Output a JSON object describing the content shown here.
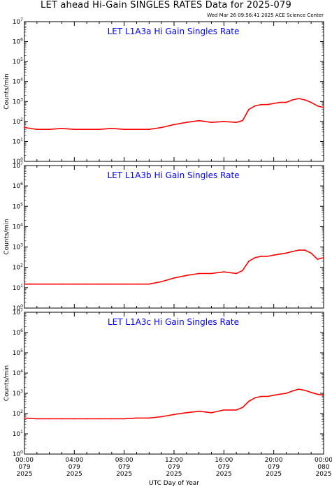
{
  "page": {
    "title": "LET ahead Hi-Gain SINGLES RATES Data for 2025-079",
    "timestamp": "Wed Mar 26 09:56:41 2025 ACE Science Center",
    "xlabel": "UTC Day of Year"
  },
  "colors": {
    "series": "#ff0000",
    "panel_title": "#0000ff",
    "axis": "#000000"
  },
  "chart_data": [
    {
      "type": "line",
      "title": "LET L1A3a Hi Gain Singles Rate",
      "ylabel": "Counts/min",
      "yscale": "log",
      "ylim": [
        1,
        10000000
      ],
      "ytick_labels": [
        "10^0",
        "10^1",
        "10^2",
        "10^3",
        "10^4",
        "10^5",
        "10^6",
        "10^7"
      ],
      "xlim": [
        0,
        24
      ],
      "x_hours": [
        0,
        1,
        2,
        3,
        4,
        5,
        6,
        7,
        8,
        9,
        10,
        11,
        12,
        13,
        14,
        15,
        16,
        17,
        17.5,
        18,
        18.5,
        19,
        19.5,
        20,
        20.5,
        21,
        21.5,
        22,
        22.5,
        23,
        23.5,
        24
      ],
      "y": [
        50,
        40,
        40,
        45,
        40,
        40,
        40,
        45,
        40,
        40,
        40,
        50,
        70,
        90,
        110,
        90,
        100,
        90,
        110,
        400,
        600,
        700,
        700,
        800,
        900,
        900,
        1200,
        1400,
        1200,
        900,
        600,
        500
      ]
    },
    {
      "type": "line",
      "title": "LET L1A3b Hi Gain Singles Rate",
      "ylabel": "Counts/min",
      "yscale": "log",
      "ylim": [
        1,
        10000000
      ],
      "ytick_labels": [
        "10^0",
        "10^1",
        "10^2",
        "10^3",
        "10^4",
        "10^5",
        "10^6",
        "10^7"
      ],
      "xlim": [
        0,
        24
      ],
      "x_hours": [
        0,
        1,
        2,
        3,
        4,
        5,
        6,
        7,
        8,
        9,
        10,
        11,
        12,
        13,
        14,
        15,
        16,
        17,
        17.5,
        18,
        18.5,
        19,
        19.5,
        20,
        20.5,
        21,
        21.5,
        22,
        22.5,
        23,
        23.5,
        24
      ],
      "y": [
        15,
        15,
        15,
        15,
        15,
        15,
        15,
        15,
        15,
        15,
        15,
        20,
        30,
        40,
        50,
        50,
        60,
        50,
        70,
        200,
        300,
        350,
        350,
        400,
        450,
        500,
        600,
        700,
        700,
        500,
        250,
        300
      ]
    },
    {
      "type": "line",
      "title": "LET L1A3c Hi Gain Singles Rate",
      "ylabel": "Counts/min",
      "yscale": "log",
      "ylim": [
        1,
        10000000
      ],
      "ytick_labels": [
        "10^0",
        "10^1",
        "10^2",
        "10^3",
        "10^4",
        "10^5",
        "10^6",
        "10^7"
      ],
      "xlim": [
        0,
        24
      ],
      "x_hours": [
        0,
        1,
        2,
        3,
        4,
        5,
        6,
        7,
        8,
        9,
        10,
        11,
        12,
        13,
        14,
        15,
        16,
        17,
        17.5,
        18,
        18.5,
        19,
        19.5,
        20,
        20.5,
        21,
        21.5,
        22,
        22.5,
        23,
        23.5,
        24
      ],
      "y": [
        60,
        55,
        55,
        55,
        55,
        55,
        55,
        55,
        55,
        60,
        60,
        70,
        90,
        110,
        130,
        110,
        150,
        150,
        200,
        400,
        600,
        700,
        700,
        800,
        900,
        1000,
        1300,
        1600,
        1400,
        1100,
        900,
        800
      ]
    }
  ],
  "xaxis": {
    "ticks": [
      {
        "hour": 0,
        "lines": [
          "00:00",
          "079",
          "2025"
        ]
      },
      {
        "hour": 4,
        "lines": [
          "04:00",
          "079",
          "2025"
        ]
      },
      {
        "hour": 8,
        "lines": [
          "08:00",
          "079",
          "2025"
        ]
      },
      {
        "hour": 12,
        "lines": [
          "12:00",
          "079",
          "2025"
        ]
      },
      {
        "hour": 16,
        "lines": [
          "16:00",
          "079",
          "2025"
        ]
      },
      {
        "hour": 20,
        "lines": [
          "20:00",
          "079",
          "2025"
        ]
      },
      {
        "hour": 24,
        "lines": [
          "00:00",
          "080",
          "2025"
        ]
      }
    ]
  }
}
